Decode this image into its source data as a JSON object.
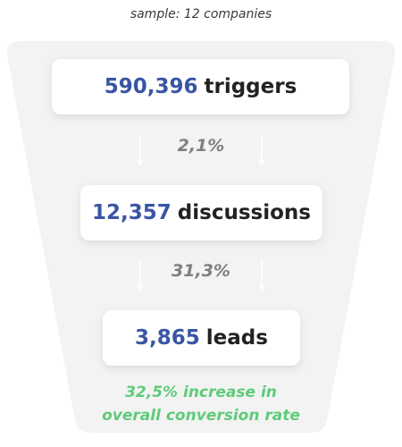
{
  "sample_note": "sample: 12 companies",
  "stages": [
    {
      "value": "590,396",
      "label": "triggers"
    },
    {
      "value": "12,357",
      "label": "discussions"
    },
    {
      "value": "3,865",
      "label": "leads"
    }
  ],
  "rates": [
    "2,1%",
    "31,3%"
  ],
  "conversion_note": {
    "line1": "32,5% increase in",
    "line2": "overall conversion rate"
  },
  "colors": {
    "value_blue": "#3a55a4",
    "label_dark": "#222222",
    "rate_gray": "#7f7f7f",
    "accent_green": "#5ecb7a",
    "funnel_bg": "#f3f3f3"
  }
}
